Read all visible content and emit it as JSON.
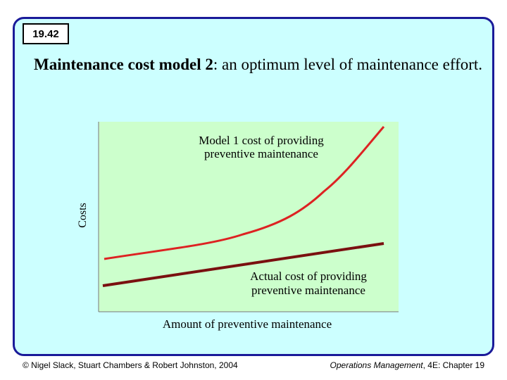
{
  "slide": {
    "number": "19.42",
    "title_bold": "Maintenance cost model 2",
    "title_rest": ": an optimum level of maintenance effort."
  },
  "colors": {
    "frame_border": "#1a1a99",
    "background": "#ccffff",
    "plot_background": "#ccffcc",
    "model1_curve": "#dd2222",
    "actual_line": "#7a1010"
  },
  "diagram": {
    "y_axis_label": "Costs",
    "x_axis_label": "Amount of preventive maintenance",
    "model1_label_line1": "Model 1 cost of providing",
    "model1_label_line2": "preventive maintenance",
    "actual_label_line1": "Actual cost of providing",
    "actual_label_line2": "preventive maintenance"
  },
  "footer": {
    "copyright": "© Nigel Slack, Stuart Chambers & Robert Johnston, 2004",
    "book_title": "Operations Management",
    "edition": ", 4E: Chapter 19"
  }
}
